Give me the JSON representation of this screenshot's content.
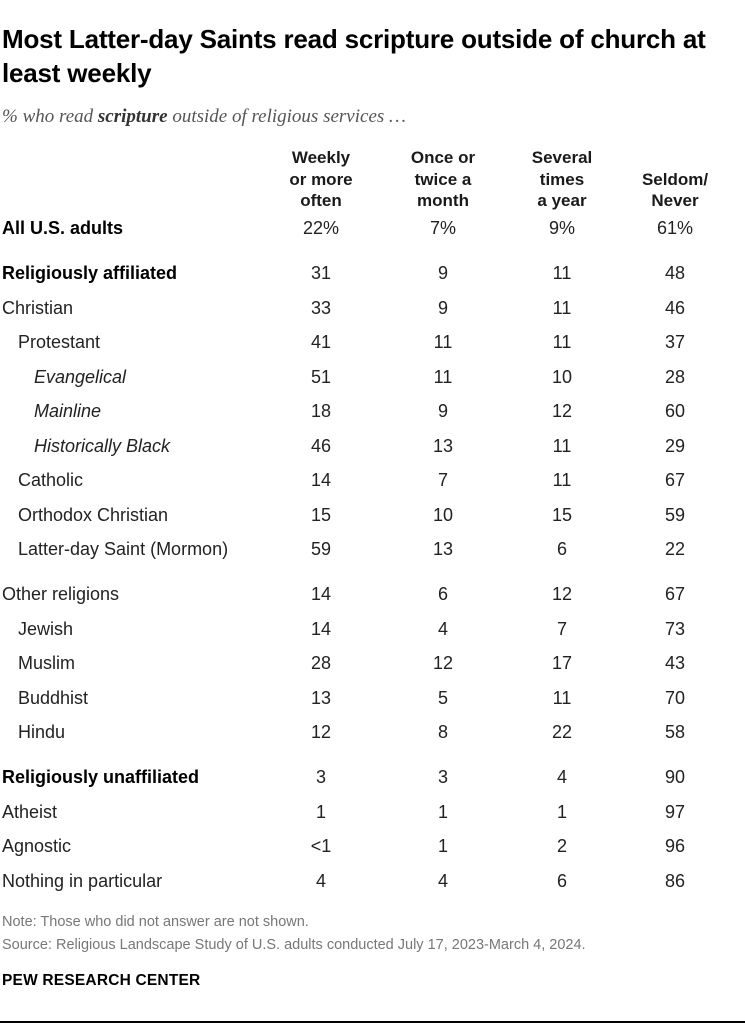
{
  "title": "Most Latter-day Saints read scripture outside of church at least weekly",
  "subtitle": {
    "prefix": "% who read ",
    "emphasis": "scripture",
    "suffix": " outside of religious services …"
  },
  "chart_data": {
    "type": "table",
    "columns": [
      [
        "Weekly",
        "or more",
        "often"
      ],
      [
        "Once or",
        "twice a",
        "month"
      ],
      [
        "Several",
        "times",
        "a year"
      ],
      [
        "Seldom/",
        "Never"
      ]
    ],
    "rows": [
      {
        "label": "All U.S. adults",
        "style": "bold",
        "values": [
          "22%",
          "7%",
          "9%",
          "61%"
        ]
      },
      {
        "label": "Religiously affiliated",
        "style": "bold",
        "values": [
          "31",
          "9",
          "11",
          "48"
        ]
      },
      {
        "label": "Christian",
        "style": "normal",
        "values": [
          "33",
          "9",
          "11",
          "46"
        ]
      },
      {
        "label": "Protestant",
        "style": "normal",
        "values": [
          "41",
          "11",
          "11",
          "37"
        ]
      },
      {
        "label": "Evangelical",
        "style": "italic",
        "values": [
          "51",
          "11",
          "10",
          "28"
        ]
      },
      {
        "label": "Mainline",
        "style": "italic",
        "values": [
          "18",
          "9",
          "12",
          "60"
        ]
      },
      {
        "label": "Historically Black",
        "style": "italic",
        "values": [
          "46",
          "13",
          "11",
          "29"
        ]
      },
      {
        "label": "Catholic",
        "style": "normal",
        "values": [
          "14",
          "7",
          "11",
          "67"
        ]
      },
      {
        "label": "Orthodox Christian",
        "style": "normal",
        "values": [
          "15",
          "10",
          "15",
          "59"
        ]
      },
      {
        "label": "Latter-day Saint (Mormon)",
        "style": "normal",
        "values": [
          "59",
          "13",
          "6",
          "22"
        ]
      },
      {
        "label": "Other religions",
        "style": "normal",
        "values": [
          "14",
          "6",
          "12",
          "67"
        ]
      },
      {
        "label": "Jewish",
        "style": "normal",
        "values": [
          "14",
          "4",
          "7",
          "73"
        ]
      },
      {
        "label": "Muslim",
        "style": "normal",
        "values": [
          "28",
          "12",
          "17",
          "43"
        ]
      },
      {
        "label": "Buddhist",
        "style": "normal",
        "values": [
          "13",
          "5",
          "11",
          "70"
        ]
      },
      {
        "label": "Hindu",
        "style": "normal",
        "values": [
          "12",
          "8",
          "22",
          "58"
        ]
      },
      {
        "label": "Religiously unaffiliated",
        "style": "bold",
        "values": [
          "3",
          "3",
          "4",
          "90"
        ]
      },
      {
        "label": "Atheist",
        "style": "normal",
        "values": [
          "1",
          "1",
          "1",
          "97"
        ]
      },
      {
        "label": "Agnostic",
        "style": "normal",
        "values": [
          "<1",
          "1",
          "2",
          "96"
        ]
      },
      {
        "label": "Nothing in particular",
        "style": "normal",
        "values": [
          "4",
          "4",
          "6",
          "86"
        ]
      }
    ]
  },
  "footer": {
    "note": "Note: Those who did not answer are not shown.",
    "source": "Source: Religious Landscape Study of U.S. adults conducted July 17, 2023-March 4, 2024.",
    "org": "PEW RESEARCH CENTER"
  }
}
